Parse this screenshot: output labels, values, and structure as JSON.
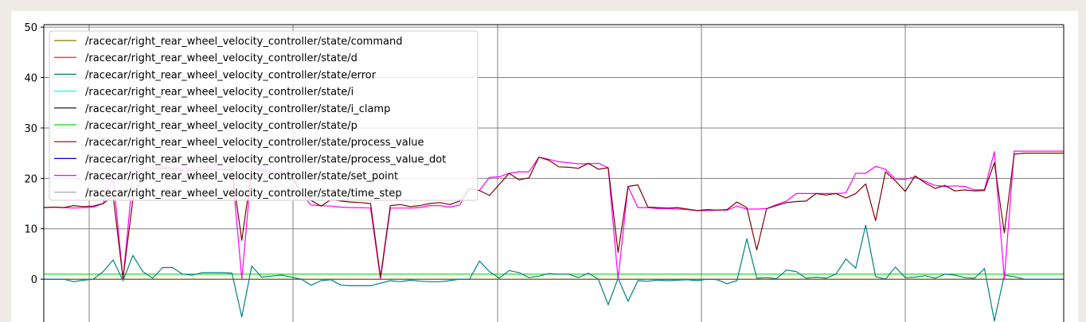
{
  "chart_data": {
    "type": "line",
    "title": "",
    "xlabel": "",
    "ylabel": "",
    "ylim": [
      -8.5,
      50.5
    ],
    "yticks": [
      0,
      10,
      20,
      30,
      40,
      50
    ],
    "ytick_labels": [
      "0",
      "10",
      "20",
      "30",
      "40",
      "50"
    ],
    "grid": true,
    "legend_position": "upper-left",
    "x": [
      0,
      1,
      2,
      3,
      4,
      5,
      6,
      7,
      8,
      9,
      10,
      11,
      12,
      13,
      14,
      15,
      16,
      17,
      18,
      19,
      20,
      21,
      22,
      23,
      24,
      25,
      26,
      27,
      28,
      29,
      30,
      31,
      32,
      33,
      34,
      35,
      36,
      37,
      38,
      39,
      40,
      41,
      42,
      43,
      44,
      45,
      46,
      47,
      48,
      49,
      50,
      51,
      52,
      53,
      54,
      55,
      56,
      57,
      58,
      59,
      60,
      61,
      62,
      63,
      64,
      65,
      66,
      67,
      68,
      69,
      70,
      71,
      72,
      73,
      74,
      75,
      76,
      77,
      78,
      79,
      80,
      81,
      82,
      83,
      84,
      85,
      86,
      87,
      88,
      89,
      90,
      91,
      92,
      93,
      94,
      95,
      96,
      97,
      98,
      99,
      100,
      101,
      102,
      103
    ],
    "series": [
      {
        "name": "/racecar/right_rear_wheel_velocity_controller/state/command",
        "color": "#808000",
        "values": [
          0,
          0,
          0,
          0,
          0,
          0,
          0,
          0,
          0,
          0,
          0,
          0,
          0,
          0,
          0,
          0,
          0,
          0,
          0,
          0,
          0,
          0,
          0,
          0,
          0,
          0,
          0,
          0,
          0,
          0,
          0,
          0,
          0,
          0,
          0,
          0,
          0,
          0,
          0,
          0,
          0,
          0,
          0,
          0,
          0,
          0,
          0,
          0,
          0,
          0,
          0,
          0,
          0,
          0,
          0,
          0,
          0,
          0,
          0,
          0,
          0,
          0,
          0,
          0,
          0,
          0,
          0,
          0,
          0,
          0,
          0,
          0,
          0,
          0,
          0,
          0,
          0,
          0,
          0,
          0,
          0,
          0,
          0,
          0,
          0,
          0,
          0,
          0,
          0,
          0,
          0,
          0,
          0,
          0,
          0,
          0,
          0,
          0,
          0,
          0,
          0,
          0,
          0,
          0
        ]
      },
      {
        "name": "/racecar/right_rear_wheel_velocity_controller/state/d",
        "color": "#ff0000",
        "values": [
          0,
          0,
          0,
          0,
          0,
          0,
          0,
          0,
          0,
          0,
          0,
          0,
          0,
          0,
          0,
          0,
          0,
          0,
          0,
          0,
          0,
          0,
          0,
          0,
          0,
          0,
          0,
          0,
          0,
          0,
          0,
          0,
          0,
          0,
          0,
          0,
          0,
          0,
          0,
          0,
          0,
          0,
          0,
          0,
          0,
          0,
          0,
          0,
          0,
          0,
          0,
          0,
          0,
          0,
          0,
          0,
          0,
          0,
          0,
          0,
          0,
          0,
          0,
          0,
          0,
          0,
          0,
          0,
          0,
          0,
          0,
          0,
          0,
          0,
          0,
          0,
          0,
          0,
          0,
          0,
          0,
          0,
          0,
          0,
          0,
          0,
          0,
          0,
          0,
          0,
          0,
          0,
          0,
          0,
          0,
          0,
          0,
          0,
          0,
          0,
          0,
          0,
          0,
          0
        ]
      },
      {
        "name": "/racecar/right_rear_wheel_velocity_controller/state/error",
        "color": "#008080",
        "values": [
          0,
          0,
          0,
          -0.5,
          -0.2,
          0,
          1.5,
          3.8,
          -0.3,
          4.7,
          1.5,
          0.2,
          2.3,
          2.3,
          1.0,
          0.8,
          1.3,
          1.3,
          1.3,
          1.2,
          -7.5,
          2.6,
          0.4,
          0.6,
          0.8,
          0.4,
          0,
          -1.2,
          -0.3,
          -0.1,
          -1.2,
          -1.3,
          -1.3,
          -1.3,
          -0.8,
          -0.3,
          -0.5,
          -0.2,
          -0.4,
          -0.5,
          -0.5,
          -0.3,
          0,
          0,
          3.6,
          1.5,
          0.2,
          1.7,
          1.3,
          0.3,
          0.6,
          1.1,
          1.0,
          1.0,
          0.3,
          1.2,
          0,
          -5.1,
          0.2,
          -4.4,
          -0.3,
          -0.4,
          -0.2,
          -0.3,
          -0.2,
          -0.1,
          -0.3,
          0,
          -0.1,
          -0.9,
          -0.3,
          8.0,
          0.2,
          0.3,
          0.1,
          1.8,
          1.5,
          0.2,
          0.4,
          0.2,
          1.0,
          4.0,
          2.2,
          10.7,
          0.5,
          0,
          2.4,
          0.3,
          0.4,
          0.7,
          0.2,
          1.0,
          0.8,
          0.3,
          0.2,
          2.1,
          -8.3,
          0.8,
          0.5,
          0,
          0,
          0,
          0,
          0
        ]
      },
      {
        "name": "/racecar/right_rear_wheel_velocity_controller/state/i",
        "color": "#00ffff",
        "values": [
          0,
          0,
          0,
          0,
          0,
          0,
          0,
          0,
          0,
          0,
          0,
          0,
          0,
          0,
          0,
          0,
          0,
          0,
          0,
          0,
          0,
          0,
          0,
          0,
          0,
          0,
          0,
          0,
          0,
          0,
          0,
          0,
          0,
          0,
          0,
          0,
          0,
          0,
          0,
          0,
          0,
          0,
          0,
          0,
          0,
          0,
          0,
          0,
          0,
          0,
          0,
          0,
          0,
          0,
          0,
          0,
          0,
          0,
          0,
          0,
          0,
          0,
          0,
          0,
          0,
          0,
          0,
          0,
          0,
          0,
          0,
          0,
          0,
          0,
          0,
          0,
          0,
          0,
          0,
          0,
          0,
          0,
          0,
          0,
          0,
          0,
          0,
          0,
          0,
          0,
          0,
          0,
          0,
          0,
          0,
          0,
          0,
          0,
          0,
          0,
          0,
          0,
          0,
          0
        ]
      },
      {
        "name": "/racecar/right_rear_wheel_velocity_controller/state/i_clamp",
        "color": "#000000",
        "values": [
          0,
          0,
          0,
          0,
          0,
          0,
          0,
          0,
          0,
          0,
          0,
          0,
          0,
          0,
          0,
          0,
          0,
          0,
          0,
          0,
          0,
          0,
          0,
          0,
          0,
          0,
          0,
          0,
          0,
          0,
          0,
          0,
          0,
          0,
          0,
          0,
          0,
          0,
          0,
          0,
          0,
          0,
          0,
          0,
          0,
          0,
          0,
          0,
          0,
          0,
          0,
          0,
          0,
          0,
          0,
          0,
          0,
          0,
          0,
          0,
          0,
          0,
          0,
          0,
          0,
          0,
          0,
          0,
          0,
          0,
          0,
          0,
          0,
          0,
          0,
          0,
          0,
          0,
          0,
          0,
          0,
          0,
          0,
          0,
          0,
          0,
          0,
          0,
          0,
          0,
          0,
          0,
          0,
          0,
          0,
          0,
          0,
          0,
          0,
          0,
          0,
          0,
          0,
          0
        ]
      },
      {
        "name": "/racecar/right_rear_wheel_velocity_controller/state/p",
        "color": "#00dd00",
        "values": [
          1,
          1,
          1,
          1,
          1,
          1,
          1,
          1,
          1,
          1,
          1,
          1,
          1,
          1,
          1,
          1,
          1,
          1,
          1,
          1,
          1,
          1,
          1,
          1,
          1,
          1,
          1,
          1,
          1,
          1,
          1,
          1,
          1,
          1,
          1,
          1,
          1,
          1,
          1,
          1,
          1,
          1,
          1,
          1,
          1,
          1,
          1,
          1,
          1,
          1,
          1,
          1,
          1,
          1,
          1,
          1,
          1,
          1,
          1,
          1,
          1,
          1,
          1,
          1,
          1,
          1,
          1,
          1,
          1,
          1,
          1,
          1,
          1,
          1,
          1,
          1,
          1,
          1,
          1,
          1,
          1,
          1,
          1,
          1,
          1,
          1,
          1,
          1,
          1,
          1,
          1,
          1,
          1,
          1,
          1,
          1,
          1,
          1,
          1,
          1,
          1,
          1,
          1,
          1
        ]
      },
      {
        "name": "/racecar/right_rear_wheel_velocity_controller/state/process_value",
        "color": "#800000",
        "values": [
          14.2,
          14.3,
          14.2,
          14.6,
          14.4,
          14.5,
          15.0,
          16.5,
          0.2,
          15.8,
          20.5,
          21.8,
          22.0,
          21.8,
          21.5,
          21.6,
          21.7,
          21.8,
          21.8,
          21.7,
          7.7,
          21.9,
          21.5,
          21.0,
          21.0,
          20.5,
          17.0,
          15.6,
          14.5,
          15.8,
          15.5,
          15.3,
          15.2,
          15.0,
          0.4,
          14.6,
          14.8,
          14.4,
          14.6,
          15.0,
          15.2,
          14.8,
          15.5,
          18.0,
          17.6,
          16.6,
          18.8,
          21.0,
          19.7,
          20.1,
          24.2,
          23.6,
          22.3,
          22.2,
          22.0,
          23.0,
          21.8,
          22.1,
          5.3,
          18.4,
          18.7,
          14.3,
          14.2,
          14.1,
          14.2,
          13.9,
          13.6,
          13.8,
          13.7,
          13.8,
          15.3,
          14.2,
          5.8,
          14.0,
          14.6,
          15.2,
          15.4,
          15.5,
          17.0,
          16.7,
          17.0,
          16.1,
          17.0,
          18.9,
          11.6,
          21.3,
          19.5,
          17.4,
          20.5,
          19.1,
          18.0,
          18.6,
          17.5,
          17.7,
          17.5,
          17.6,
          23.1,
          9.2,
          24.8,
          25.0,
          25.0,
          25.0,
          25.0,
          25.0
        ]
      },
      {
        "name": "/racecar/right_rear_wheel_velocity_controller/state/process_value_dot",
        "color": "#0000cc",
        "values": [
          0,
          0,
          0,
          0,
          0,
          0,
          0,
          0,
          0,
          0,
          0,
          0,
          0,
          0,
          0,
          0,
          0,
          0,
          0,
          0,
          0,
          0,
          0,
          0,
          0,
          0,
          0,
          0,
          0,
          0,
          0,
          0,
          0,
          0,
          0,
          0,
          0,
          0,
          0,
          0,
          0,
          0,
          0,
          0,
          0,
          0,
          0,
          0,
          0,
          0,
          0,
          0,
          0,
          0,
          0,
          0,
          0,
          0,
          0,
          0,
          0,
          0,
          0,
          0,
          0,
          0,
          0,
          0,
          0,
          0,
          0,
          0,
          0,
          0,
          0,
          0,
          0,
          0,
          0,
          0,
          0,
          0,
          0,
          0,
          0,
          0,
          0,
          0,
          0,
          0,
          0,
          0,
          0,
          0,
          0,
          0,
          0,
          0,
          0,
          0,
          0,
          0,
          0,
          0
        ]
      },
      {
        "name": "/racecar/right_rear_wheel_velocity_controller/state/set_point",
        "color": "#ff00ff",
        "values": [
          14.2,
          14.3,
          14.2,
          14.1,
          14.2,
          14.3,
          15.0,
          20.3,
          0.0,
          20.5,
          22.0,
          22.2,
          22.3,
          22.1,
          22.0,
          22.0,
          22.2,
          22.3,
          22.3,
          22.2,
          0.0,
          22.4,
          21.9,
          21.4,
          21.2,
          20.8,
          17.0,
          14.7,
          14.6,
          14.5,
          14.3,
          14.2,
          14.2,
          14.1,
          0.0,
          14.1,
          14.1,
          14.1,
          14.2,
          14.6,
          14.6,
          14.3,
          14.7,
          17.9,
          17.6,
          20.2,
          20.3,
          21.0,
          21.3,
          21.3,
          24.2,
          23.8,
          23.3,
          23.1,
          22.9,
          22.9,
          23.0,
          22.1,
          0.0,
          18.4,
          14.2,
          14.2,
          14.0,
          14.0,
          13.9,
          13.8,
          13.6,
          13.6,
          13.7,
          13.7,
          14.5,
          13.9,
          13.9,
          14.0,
          14.8,
          15.5,
          17.0,
          17.0,
          17.0,
          17.0,
          17.0,
          17.1,
          21.0,
          21.0,
          22.4,
          21.8,
          19.9,
          19.8,
          20.3,
          19.4,
          18.6,
          18.4,
          18.5,
          18.4,
          17.7,
          17.8,
          25.3,
          0.0,
          25.4,
          25.4,
          25.4,
          25.4,
          25.4,
          25.4
        ]
      },
      {
        "name": "/racecar/right_rear_wheel_velocity_controller/state/time_step",
        "color": "#a0a0a0",
        "values": [
          0,
          0,
          0,
          0,
          0,
          0,
          0,
          0,
          0,
          0,
          0,
          0,
          0,
          0,
          0,
          0,
          0,
          0,
          0,
          0,
          0,
          0,
          0,
          0,
          0,
          0,
          0,
          0,
          0,
          0,
          0,
          0,
          0,
          0,
          0,
          0,
          0,
          0,
          0,
          0,
          0,
          0,
          0,
          0,
          0,
          0,
          0,
          0,
          0,
          0,
          0,
          0,
          0,
          0,
          0,
          0,
          0,
          0,
          0,
          0,
          0,
          0,
          0,
          0,
          0,
          0,
          0,
          0,
          0,
          0,
          0,
          0,
          0,
          0,
          0,
          0,
          0,
          0,
          0,
          0,
          0,
          0,
          0,
          0,
          0,
          0,
          0,
          0,
          0,
          0,
          0,
          0,
          0,
          0,
          0,
          0,
          0,
          0,
          0,
          0,
          0,
          0,
          0,
          0
        ]
      }
    ]
  }
}
